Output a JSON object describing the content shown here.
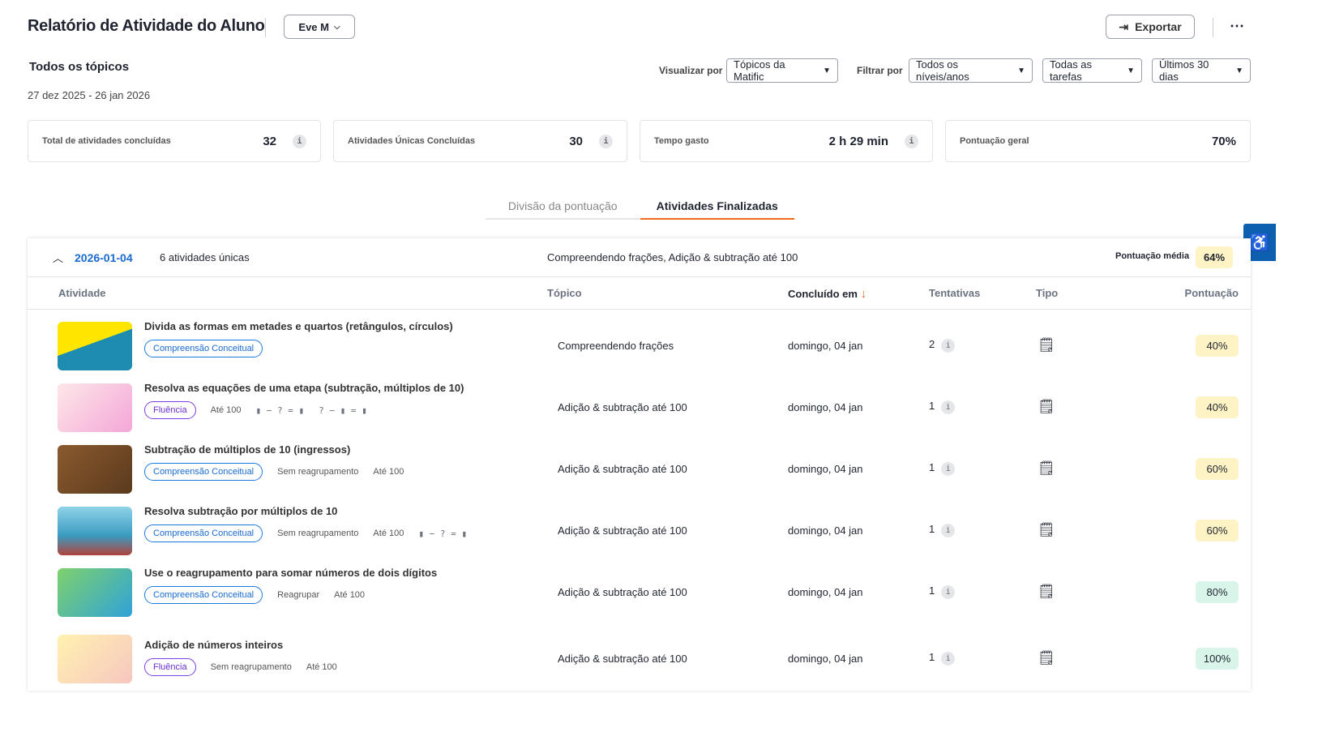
{
  "header": {
    "title": "Relatório de Atividade do Aluno",
    "student": "Eve M",
    "export_label": "Exportar",
    "more": "⋯"
  },
  "filters": {
    "topic_heading": "Todos os tópicos",
    "date_range": "27 dez 2025 - 26 jan 2026",
    "view_by_label": "Visualizar por",
    "view_by": "Tópicos da Matific",
    "filter_by_label": "Filtrar por",
    "levels": "Todos os níveis/anos",
    "tasks": "Todas as tarefas",
    "period": "Últimos 30 dias"
  },
  "stats": [
    {
      "label": "Total de atividades concluídas",
      "value": "32",
      "info": true
    },
    {
      "label": "Atividades Únicas Concluídas",
      "value": "30",
      "info": true
    },
    {
      "label": "Tempo gasto",
      "value": "2 h 29 min",
      "info": true
    },
    {
      "label": "Pontuação geral",
      "value": "70%",
      "info": false
    }
  ],
  "tabs": [
    {
      "label": "Divisão da pontuação",
      "active": false
    },
    {
      "label": "Atividades Finalizadas",
      "active": true
    }
  ],
  "group": {
    "date": "2026-01-04",
    "count": "6 atividades únicas",
    "topics": "Compreendendo frações, Adição & subtração até 100",
    "avg_label": "Pontuação média",
    "avg": "64%"
  },
  "columns": {
    "activity": "Atividade",
    "topic": "Tópico",
    "completed": "Concluído em",
    "attempts": "Tentativas",
    "type": "Tipo",
    "score": "Pontuação"
  },
  "rows": [
    {
      "title": "Divida as formas em metades e quartos (retângulos, círculos)",
      "tags": [
        {
          "kind": "blue",
          "text": "Compreensão Conceitual"
        }
      ],
      "topic": "Compreendendo frações",
      "date": "domingo, 04 jan",
      "attempts": "2",
      "score": "40%",
      "thumb": "linear-gradient(160deg,#ffe600 45%,#1e8bb0 45%)"
    },
    {
      "title": "Resolva as equações de uma etapa (subtração, múltiplos de 10)",
      "tags": [
        {
          "kind": "purple",
          "text": "Fluência"
        },
        {
          "kind": "text",
          "text": "Até 100"
        },
        {
          "kind": "eq",
          "text": "▮ − ? = ▮"
        },
        {
          "kind": "eq",
          "text": "? − ▮ = ▮"
        }
      ],
      "topic": "Adição & subtração até 100",
      "date": "domingo, 04 jan",
      "attempts": "1",
      "score": "40%",
      "thumb": "linear-gradient(135deg,#fde8e8,#f4a6d8)"
    },
    {
      "title": "Subtração de múltiplos de 10 (ingressos)",
      "tags": [
        {
          "kind": "blue",
          "text": "Compreensão Conceitual"
        },
        {
          "kind": "text",
          "text": "Sem reagrupamento"
        },
        {
          "kind": "text",
          "text": "Até 100"
        }
      ],
      "topic": "Adição & subtração até 100",
      "date": "domingo, 04 jan",
      "attempts": "1",
      "score": "60%",
      "thumb": "linear-gradient(135deg,#8a5a2e,#5b3a1d)"
    },
    {
      "title": "Resolva subtração por múltiplos de 10",
      "tags": [
        {
          "kind": "blue",
          "text": "Compreensão Conceitual"
        },
        {
          "kind": "text",
          "text": "Sem reagrupamento"
        },
        {
          "kind": "text",
          "text": "Até 100"
        },
        {
          "kind": "eq",
          "text": "▮ − ? = ▮"
        }
      ],
      "topic": "Adição & subtração até 100",
      "date": "domingo, 04 jan",
      "attempts": "1",
      "score": "60%",
      "thumb": "linear-gradient(180deg,#8fd3e8,#3a9bc0 60%,#b0433a)"
    },
    {
      "title": "Use o reagrupamento para somar números de dois dígitos",
      "tags": [
        {
          "kind": "blue",
          "text": "Compreensão Conceitual"
        },
        {
          "kind": "text",
          "text": "Reagrupar"
        },
        {
          "kind": "text",
          "text": "Até 100"
        }
      ],
      "topic": "Adição & subtração até 100",
      "date": "domingo, 04 jan",
      "attempts": "1",
      "score": "80%",
      "thumb": "linear-gradient(135deg,#7fd16b,#2fa3d8)"
    },
    {
      "title": "Adição de números inteiros",
      "tags": [
        {
          "kind": "purple",
          "text": "Fluência"
        },
        {
          "kind": "text",
          "text": "Sem reagrupamento"
        },
        {
          "kind": "text",
          "text": "Até 100"
        }
      ],
      "topic": "Adição & subtração até 100",
      "date": "domingo, 04 jan",
      "attempts": "1",
      "score": "100%",
      "thumb": "linear-gradient(135deg,#fff2b0,#f7c6c0)"
    }
  ],
  "colors": {
    "accent": "#f26b1d",
    "link": "#1a6ad0",
    "score_mid": "#fdf3c4",
    "score_high": "#d9f5ea"
  }
}
